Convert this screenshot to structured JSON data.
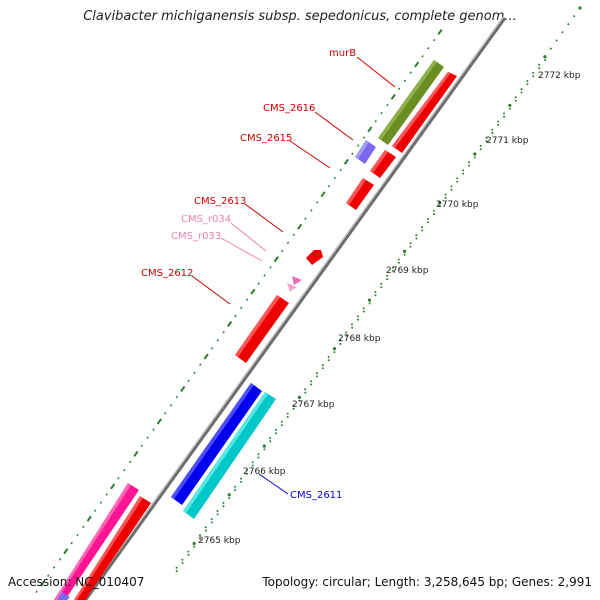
{
  "title": "Clavibacter michiganensis subsp. sepedonicus, complete genom...",
  "footer": {
    "accession": "Accession: NC_010407",
    "summary": "Topology: circular; Length: 3,258,645 bp; Genes: 2,991"
  },
  "colors": {
    "backbone": "#8c8c8c",
    "tick": "#2e7d32",
    "gene_label": "#cc0000",
    "rna_label": "#f080b0",
    "blue_label": "#0000cc"
  },
  "kbp_ticks": [
    {
      "label": "2772 kbp",
      "kbp": 2772
    },
    {
      "label": "2771 kbp",
      "kbp": 2771
    },
    {
      "label": "2770 kbp",
      "kbp": 2770
    },
    {
      "label": "2769 kbp",
      "kbp": 2769
    },
    {
      "label": "2768 kbp",
      "kbp": 2768
    },
    {
      "label": "2767 kbp",
      "kbp": 2767
    },
    {
      "label": "2766 kbp",
      "kbp": 2766
    },
    {
      "label": "2765 kbp",
      "kbp": 2765
    }
  ],
  "feature_labels": [
    {
      "text": "murB",
      "kind": "gene"
    },
    {
      "text": "CMS_2616",
      "kind": "gene"
    },
    {
      "text": "CMS_2615",
      "kind": "gene"
    },
    {
      "text": "CMS_2613",
      "kind": "gene"
    },
    {
      "text": "CMS_r034",
      "kind": "rna"
    },
    {
      "text": "CMS_r033",
      "kind": "rna"
    },
    {
      "text": "CMS_2612",
      "kind": "gene"
    },
    {
      "text": "CMS_2611",
      "kind": "blue"
    }
  ]
}
